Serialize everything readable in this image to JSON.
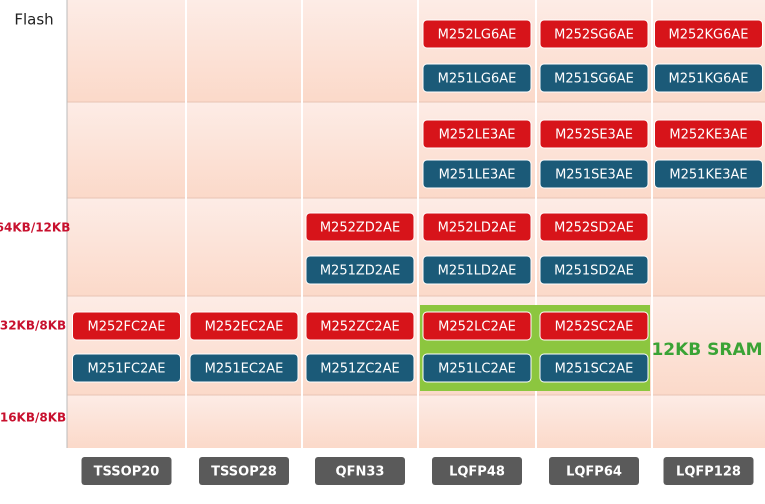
{
  "axis_title": "Flash",
  "rows": [
    {
      "label": null,
      "chips": [
        null,
        null,
        null,
        [
          "M252LG6AE",
          "M251LG6AE"
        ],
        [
          "M252SG6AE",
          "M251SG6AE"
        ],
        [
          "M252KG6AE",
          "M251KG6AE"
        ]
      ]
    },
    {
      "label": null,
      "chips": [
        null,
        null,
        null,
        [
          "M252LE3AE",
          "M251LE3AE"
        ],
        [
          "M252SE3AE",
          "M251SE3AE"
        ],
        [
          "M252KE3AE",
          "M251KE3AE"
        ]
      ]
    },
    {
      "label": "64KB/12KB",
      "chips": [
        null,
        null,
        [
          "M252ZD2AE",
          "M251ZD2AE"
        ],
        [
          "M252LD2AE",
          "M251LD2AE"
        ],
        [
          "M252SD2AE",
          "M251SD2AE"
        ],
        null
      ]
    },
    {
      "label": "32KB/8KB",
      "chips": [
        [
          "M252FC2AE",
          "M251FC2AE"
        ],
        [
          "M252EC2AE",
          "M251EC2AE"
        ],
        [
          "M252ZC2AE",
          "M251ZC2AE"
        ],
        [
          "M252LC2AE",
          "M251LC2AE"
        ],
        [
          "M252SC2AE",
          "M251SC2AE"
        ],
        null
      ]
    },
    {
      "label": "16KB/8KB",
      "chips": [
        null,
        null,
        null,
        null,
        null,
        null
      ]
    }
  ],
  "packages": [
    "TSSOP20",
    "TSSOP28",
    "QFN33",
    "LQFP48",
    "LQFP64",
    "LQFP128"
  ],
  "highlight_label": "12KB SRAM"
}
